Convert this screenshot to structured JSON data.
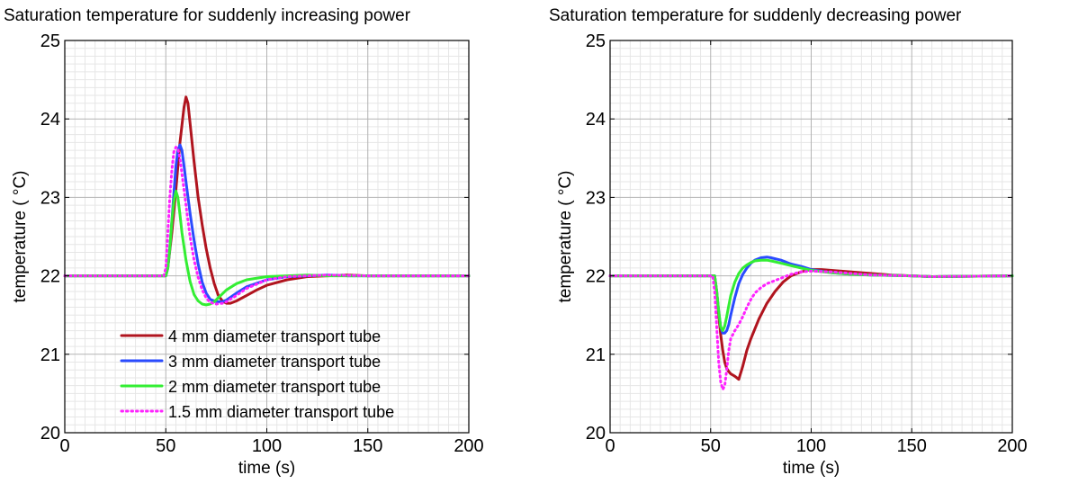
{
  "chart_data": [
    {
      "type": "line",
      "title": "Saturation temperature for suddenly increasing power",
      "xlabel": "time (s)",
      "ylabel": "temperature ( °C)",
      "xlim": [
        0,
        200
      ],
      "ylim": [
        20,
        25
      ],
      "xticks": [
        "0",
        "50",
        "100",
        "150",
        "200"
      ],
      "yticks": [
        "20",
        "21",
        "22",
        "23",
        "24",
        "25"
      ],
      "grid": "major and minor",
      "legend": "lower-left",
      "series": [
        {
          "name": "4 mm diameter transport tube",
          "color": "#b0141e",
          "style": "solid",
          "x": [
            0,
            50,
            51,
            53,
            55,
            57,
            59,
            60,
            61,
            62,
            64,
            66,
            68,
            70,
            72,
            74,
            76,
            78,
            80,
            82,
            85,
            90,
            95,
            100,
            110,
            120,
            130,
            140,
            150,
            200
          ],
          "y": [
            22,
            22,
            22.1,
            22.55,
            23.1,
            23.7,
            24.15,
            24.28,
            24.2,
            23.95,
            23.45,
            23.0,
            22.65,
            22.35,
            22.1,
            21.9,
            21.75,
            21.68,
            21.65,
            21.65,
            21.68,
            21.75,
            21.82,
            21.88,
            21.95,
            21.99,
            22.0,
            22.01,
            22.0,
            22.0
          ]
        },
        {
          "name": "3 mm diameter transport tube",
          "color": "#2a4bff",
          "style": "solid",
          "x": [
            0,
            50,
            51,
            52,
            53,
            54,
            55,
            56,
            57,
            58,
            59,
            60,
            62,
            64,
            66,
            68,
            70,
            72,
            75,
            78,
            80,
            85,
            90,
            100,
            110,
            120,
            130,
            140,
            150,
            200
          ],
          "y": [
            22,
            22,
            22.1,
            22.35,
            22.7,
            23.05,
            23.4,
            23.6,
            23.67,
            23.6,
            23.4,
            23.2,
            22.8,
            22.45,
            22.15,
            21.92,
            21.78,
            21.7,
            21.67,
            21.67,
            21.69,
            21.78,
            21.86,
            21.95,
            21.99,
            22.0,
            22.01,
            22.0,
            22.0,
            22.0
          ]
        },
        {
          "name": "2 mm diameter transport tube",
          "color": "#33ee33",
          "style": "solid",
          "x": [
            0,
            50,
            51,
            52,
            53,
            54,
            55,
            56,
            57,
            58,
            60,
            62,
            64,
            66,
            68,
            70,
            72,
            74,
            76,
            78,
            80,
            85,
            90,
            100,
            110,
            120,
            130,
            150,
            200
          ],
          "y": [
            22,
            22,
            22.1,
            22.35,
            22.7,
            22.95,
            23.08,
            23.0,
            22.78,
            22.55,
            22.2,
            21.93,
            21.76,
            21.68,
            21.64,
            21.63,
            21.64,
            21.67,
            21.72,
            21.77,
            21.82,
            21.9,
            21.95,
            21.99,
            22.0,
            22.01,
            22.0,
            22.0,
            22.0
          ]
        },
        {
          "name": "1.5 mm diameter transport tube",
          "color": "#ff22ff",
          "style": "dotted",
          "x": [
            0,
            49,
            50,
            51,
            52,
            53,
            54,
            55,
            56,
            57,
            58,
            60,
            62,
            64,
            66,
            68,
            70,
            72,
            75,
            78,
            80,
            85,
            90,
            100,
            110,
            120,
            130,
            150,
            200
          ],
          "y": [
            22,
            22,
            22.1,
            22.55,
            23.0,
            23.35,
            23.58,
            23.64,
            23.62,
            23.5,
            23.3,
            22.9,
            22.5,
            22.2,
            21.98,
            21.82,
            21.72,
            21.66,
            21.64,
            21.65,
            21.67,
            21.75,
            21.84,
            21.95,
            21.99,
            22.0,
            22.01,
            22.0,
            22.0
          ]
        }
      ]
    },
    {
      "type": "line",
      "title": "Saturation temperature for suddenly decreasing power",
      "xlabel": "time (s)",
      "ylabel": "temperature ( °C)",
      "xlim": [
        0,
        200
      ],
      "ylim": [
        20,
        25
      ],
      "xticks": [
        "0",
        "50",
        "100",
        "150",
        "200"
      ],
      "yticks": [
        "20",
        "21",
        "22",
        "23",
        "24",
        "25"
      ],
      "grid": "major and minor",
      "series": [
        {
          "name": "4 mm diameter transport tube",
          "color": "#b0141e",
          "style": "solid",
          "x": [
            0,
            52,
            53,
            54,
            55,
            56,
            57,
            58,
            59,
            60,
            62,
            64,
            66,
            68,
            70,
            74,
            78,
            82,
            86,
            90,
            95,
            100,
            105,
            110,
            120,
            130,
            140,
            150,
            160,
            200
          ],
          "y": [
            22,
            22,
            21.8,
            21.5,
            21.25,
            21.05,
            20.9,
            20.82,
            20.78,
            20.75,
            20.72,
            20.68,
            20.85,
            21.05,
            21.2,
            21.45,
            21.65,
            21.8,
            21.92,
            22.0,
            22.05,
            22.08,
            22.08,
            22.07,
            22.05,
            22.03,
            22.01,
            22.0,
            21.99,
            22.0
          ]
        },
        {
          "name": "3 mm diameter transport tube",
          "color": "#2a4bff",
          "style": "solid",
          "x": [
            0,
            52,
            53,
            54,
            55,
            56,
            57,
            58,
            59,
            60,
            62,
            64,
            66,
            68,
            70,
            72,
            75,
            78,
            80,
            85,
            90,
            95,
            100,
            110,
            120,
            130,
            150,
            160,
            200
          ],
          "y": [
            22,
            22,
            21.8,
            21.55,
            21.35,
            21.27,
            21.27,
            21.3,
            21.38,
            21.5,
            21.72,
            21.9,
            22.02,
            22.1,
            22.16,
            22.2,
            22.23,
            22.24,
            22.23,
            22.2,
            22.15,
            22.12,
            22.08,
            22.04,
            22.02,
            22.01,
            22.0,
            21.99,
            22.0
          ]
        },
        {
          "name": "2 mm diameter transport tube",
          "color": "#33ee33",
          "style": "solid",
          "x": [
            0,
            52,
            53,
            54,
            55,
            56,
            57,
            58,
            59,
            60,
            62,
            64,
            66,
            68,
            70,
            72,
            75,
            78,
            80,
            85,
            90,
            95,
            100,
            110,
            120,
            130,
            150,
            160,
            200
          ],
          "y": [
            22,
            22,
            21.8,
            21.55,
            21.35,
            21.3,
            21.36,
            21.48,
            21.62,
            21.75,
            21.92,
            22.03,
            22.1,
            22.14,
            22.17,
            22.19,
            22.2,
            22.2,
            22.19,
            22.16,
            22.13,
            22.1,
            22.07,
            22.04,
            22.02,
            22.01,
            22.0,
            21.99,
            22.0
          ]
        },
        {
          "name": "1.5 mm diameter transport tube",
          "color": "#ff22ff",
          "style": "dotted",
          "x": [
            0,
            51,
            52,
            53,
            54,
            55,
            56,
            57,
            58,
            59,
            60,
            62,
            64,
            66,
            68,
            70,
            72,
            75,
            78,
            80,
            85,
            90,
            95,
            100,
            110,
            120,
            130,
            150,
            160,
            200
          ],
          "y": [
            22,
            22,
            21.8,
            21.35,
            20.9,
            20.65,
            20.55,
            20.6,
            20.8,
            21.05,
            21.2,
            21.3,
            21.38,
            21.48,
            21.6,
            21.7,
            21.78,
            21.85,
            21.9,
            21.92,
            21.97,
            22.02,
            22.05,
            22.06,
            22.05,
            22.03,
            22.01,
            22.0,
            21.99,
            22.0
          ]
        }
      ]
    }
  ]
}
